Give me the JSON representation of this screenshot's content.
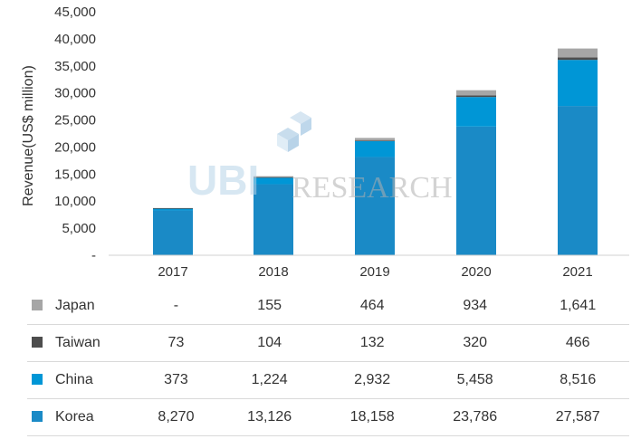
{
  "chart_data": {
    "type": "bar",
    "stacked": true,
    "categories": [
      "2017",
      "2018",
      "2019",
      "2020",
      "2021"
    ],
    "ylabel": "Revenue(US$ million)",
    "ylim": [
      0,
      45000
    ],
    "yticks": [
      "-",
      "5,000",
      "10,000",
      "15,000",
      "20,000",
      "25,000",
      "30,000",
      "35,000",
      "40,000",
      "45,000"
    ],
    "watermark": "RESEARCH",
    "series": [
      {
        "name": "Korea",
        "color": "#1a8ac6",
        "values": [
          8270,
          13126,
          18158,
          23786,
          27587
        ],
        "labels": [
          "8,270",
          "13,126",
          "18,158",
          "23,786",
          "27,587"
        ]
      },
      {
        "name": "China",
        "color": "#0096d6",
        "values": [
          373,
          1224,
          2932,
          5458,
          8516
        ],
        "labels": [
          "373",
          "1,224",
          "2,932",
          "5,458",
          "8,516"
        ]
      },
      {
        "name": "Taiwan",
        "color": "#4d4d4d",
        "values": [
          73,
          104,
          132,
          320,
          466
        ],
        "labels": [
          "73",
          "104",
          "132",
          "320",
          "466"
        ]
      },
      {
        "name": "Japan",
        "color": "#a6a6a6",
        "values": [
          0,
          155,
          464,
          934,
          1641
        ],
        "labels": [
          "-",
          "155",
          "464",
          "934",
          "1,641"
        ]
      }
    ]
  }
}
